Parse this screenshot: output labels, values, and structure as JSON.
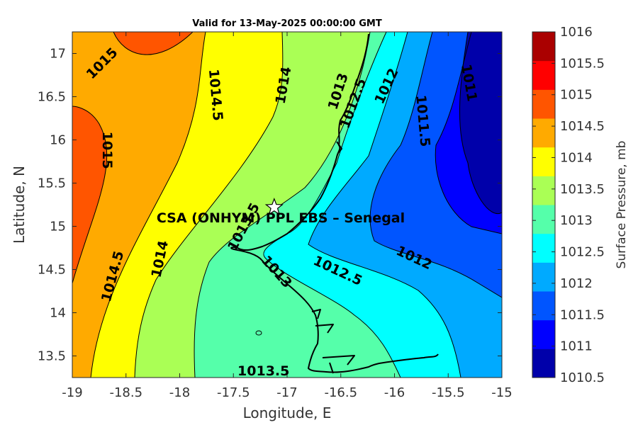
{
  "title": "Valid for 13-May-2025 00:00:00 GMT",
  "site_label": "CSA (ONHYM) PPL EBS  – Senegal",
  "chart_data": {
    "type": "contour-map",
    "xlabel": "Longitude, E",
    "ylabel": "Latitude, N",
    "xlim": [
      -19,
      -15
    ],
    "ylim": [
      13.25,
      17.25
    ],
    "x_ticks": [
      "-19",
      "-18.5",
      "-18",
      "-17.5",
      "-17",
      "-16.5",
      "-16",
      "-15.5",
      "-15"
    ],
    "y_ticks": [
      "13.5",
      "14",
      "14.5",
      "15",
      "15.5",
      "16",
      "16.5",
      "17"
    ],
    "site": {
      "lon": -17.12,
      "lat": 15.22
    },
    "contour_labels": [
      {
        "text": "1015",
        "lon": -18.72,
        "lat": 16.88,
        "rotate": -45
      },
      {
        "text": "1015",
        "lon": -18.68,
        "lat": 15.88,
        "rotate": 90
      },
      {
        "text": "1014.5",
        "lon": -17.67,
        "lat": 16.52,
        "rotate": 85
      },
      {
        "text": "1014",
        "lon": -17.03,
        "lat": 16.63,
        "rotate": -80
      },
      {
        "text": "1013",
        "lon": -16.52,
        "lat": 16.56,
        "rotate": -72
      },
      {
        "text": "1012.5",
        "lon": -16.38,
        "lat": 16.42,
        "rotate": -70
      },
      {
        "text": "1012",
        "lon": -16.07,
        "lat": 16.62,
        "rotate": -65
      },
      {
        "text": "1011.5",
        "lon": -15.74,
        "lat": 16.22,
        "rotate": 85
      },
      {
        "text": "1011",
        "lon": -15.31,
        "lat": 16.66,
        "rotate": 80
      },
      {
        "text": "1014.5",
        "lon": -18.62,
        "lat": 14.42,
        "rotate": -75
      },
      {
        "text": "1014",
        "lon": -18.18,
        "lat": 14.62,
        "rotate": -78
      },
      {
        "text": "1013.5",
        "lon": -17.4,
        "lat": 14.99,
        "rotate": -62
      },
      {
        "text": "1013",
        "lon": -17.1,
        "lat": 14.47,
        "rotate": 48
      },
      {
        "text": "1012.5",
        "lon": -16.53,
        "lat": 14.48,
        "rotate": 25
      },
      {
        "text": "1012",
        "lon": -15.82,
        "lat": 14.63,
        "rotate": 25
      },
      {
        "text": "1013.5",
        "lon": -17.22,
        "lat": 13.32,
        "rotate": 0
      }
    ],
    "colorbar": {
      "label": "Surface Pressure, mb",
      "ticks": [
        "1016",
        "1015.5",
        "1015",
        "1014.5",
        "1014",
        "1013.5",
        "1013",
        "1012.5",
        "1012",
        "1011.5",
        "1011",
        "1010.5"
      ],
      "levels": [
        1010.5,
        1011,
        1011.5,
        1012,
        1012.5,
        1013,
        1013.5,
        1014,
        1014.5,
        1015,
        1015.5,
        1016
      ],
      "colors": [
        "#0000aa",
        "#0000ff",
        "#0055ff",
        "#00aaff",
        "#00ffff",
        "#55ffaa",
        "#aaff55",
        "#ffff00",
        "#ffaa00",
        "#ff5500",
        "#ff0000",
        "#aa0000"
      ]
    }
  }
}
